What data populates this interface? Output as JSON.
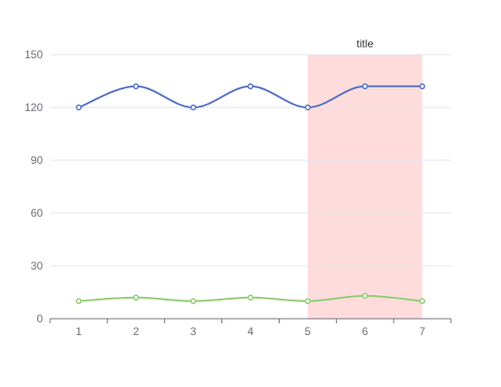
{
  "chart_data": {
    "type": "line",
    "title": "",
    "xlabel": "",
    "ylabel": "",
    "categories": [
      "1",
      "2",
      "3",
      "4",
      "5",
      "6",
      "7"
    ],
    "ylim": [
      0,
      150
    ],
    "y_ticks": [
      0,
      30,
      60,
      90,
      120,
      150
    ],
    "grid": true,
    "smooth": true,
    "series": [
      {
        "values": [
          120,
          132,
          120,
          132,
          120,
          132,
          132
        ],
        "color": "#5470c6"
      },
      {
        "values": [
          10,
          12,
          10,
          12,
          10,
          13,
          10
        ],
        "color": "#91cc75"
      }
    ],
    "mark_area": {
      "label": "title",
      "x_start": "5",
      "x_end": "7",
      "color": "#ffdcdc"
    },
    "axis_color": "#6e7079",
    "grid_color": "#e0e6f1"
  }
}
